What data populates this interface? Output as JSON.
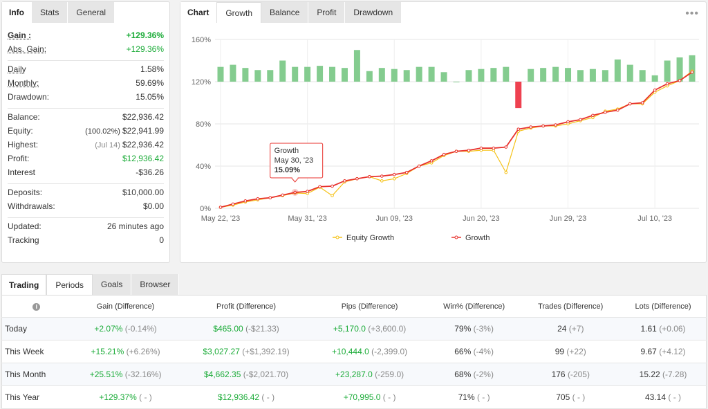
{
  "info_panel": {
    "tabs": [
      "Info",
      "Stats",
      "General"
    ],
    "gain": {
      "label": "Gain :",
      "value": "+129.36%"
    },
    "abs_gain": {
      "label": "Abs. Gain:",
      "value": "+129.36%"
    },
    "daily": {
      "label": "Daily",
      "value": "1.58%"
    },
    "monthly": {
      "label": "Monthly:",
      "value": "59.69%"
    },
    "drawdown": {
      "label": "Drawdown:",
      "value": "15.05%"
    },
    "balance": {
      "label": "Balance:",
      "value": "$22,936.42"
    },
    "equity": {
      "label": "Equity:",
      "note": "(100.02%)",
      "value": "$22,941.99"
    },
    "highest": {
      "label": "Highest:",
      "note": "(Jul 14)",
      "value": "$22,936.42"
    },
    "profit": {
      "label": "Profit:",
      "value": "$12,936.42"
    },
    "interest": {
      "label": "Interest",
      "value": "-$36.26"
    },
    "deposits": {
      "label": "Deposits:",
      "value": "$10,000.00"
    },
    "withdrawals": {
      "label": "Withdrawals:",
      "value": "$0.00"
    },
    "updated": {
      "label": "Updated:",
      "value": "26 minutes ago"
    },
    "tracking": {
      "label": "Tracking",
      "value": "0"
    }
  },
  "chart_panel": {
    "tabs": [
      "Chart",
      "Growth",
      "Balance",
      "Profit",
      "Drawdown"
    ],
    "more_icon": "more-dots-icon",
    "tooltip": {
      "title": "Growth",
      "date": "May 30, '23",
      "value": "15.09%"
    }
  },
  "chart_data": {
    "type": "line",
    "x": [
      "May 22, '23",
      "May 23, '23",
      "May 24, '23",
      "May 25, '23",
      "May 26, '23",
      "May 29, '23",
      "May 30, '23",
      "May 31, '23",
      "Jun 01, '23",
      "Jun 02, '23",
      "Jun 05, '23",
      "Jun 06, '23",
      "Jun 07, '23",
      "Jun 08, '23",
      "Jun 09, '23",
      "Jun 12, '23",
      "Jun 13, '23",
      "Jun 14, '23",
      "Jun 15, '23",
      "Jun 16, '23",
      "Jun 19, '23",
      "Jun 20, '23",
      "Jun 21, '23",
      "Jun 22, '23",
      "Jun 23, '23",
      "Jun 26, '23",
      "Jun 27, '23",
      "Jun 28, '23",
      "Jun 29, '23",
      "Jun 30, '23",
      "Jul 03, '23",
      "Jul 04, '23",
      "Jul 05, '23",
      "Jul 06, '23",
      "Jul 07, '23",
      "Jul 10, '23",
      "Jul 11, '23",
      "Jul 12, '23",
      "Jul 13, '23"
    ],
    "xticks": [
      "May 22, '23",
      "May 31, '23",
      "Jun 09, '23",
      "Jun 20, '23",
      "Jun 29, '23",
      "Jul 10, '23"
    ],
    "yticks": [
      "0%",
      "40%",
      "80%",
      "120%",
      "160%"
    ],
    "ylim": [
      0,
      160
    ],
    "series": [
      {
        "name": "Growth",
        "color": "#e8322d",
        "type": "line",
        "values": [
          1,
          4,
          7,
          9,
          10,
          12.5,
          15.1,
          16,
          20.5,
          21,
          26,
          28,
          30,
          30.5,
          32,
          34,
          40,
          45,
          51,
          54,
          55,
          57,
          57,
          58,
          75,
          77,
          78,
          79,
          82,
          84,
          88,
          91,
          93,
          99,
          100,
          112,
          118,
          121,
          129
        ]
      },
      {
        "name": "Equity Growth",
        "color": "#f5c218",
        "type": "line",
        "values": [
          1,
          3,
          6,
          8,
          10,
          12,
          14.5,
          14,
          20,
          12,
          25,
          28,
          30,
          26,
          28,
          33,
          40,
          43,
          50,
          54,
          54,
          55,
          55,
          34,
          73,
          76,
          78,
          78,
          80,
          83,
          86,
          92,
          94,
          99,
          99,
          110,
          116,
          121,
          130
        ]
      }
    ],
    "daily_bars": {
      "baseline": 120,
      "values": [
        134,
        136,
        133,
        131,
        131,
        140,
        134,
        134,
        135,
        134,
        133,
        150,
        130,
        133,
        132,
        131,
        134,
        134,
        129,
        120,
        131,
        132,
        133,
        134,
        95,
        132,
        133,
        134,
        133,
        131,
        132,
        131,
        141,
        136,
        131,
        126,
        140,
        143,
        145
      ],
      "positive_color": "#84cc8f",
      "negative_color": "#ee4150",
      "note": "bars show daily change around the 120% level"
    }
  },
  "legend": [
    "Equity Growth",
    "Growth"
  ],
  "periods": {
    "tabs": [
      "Trading",
      "Periods",
      "Goals",
      "Browser"
    ],
    "headers": [
      "Gain (Difference)",
      "Profit (Difference)",
      "Pips (Difference)",
      "Win% (Difference)",
      "Trades (Difference)",
      "Lots (Difference)"
    ],
    "rows": [
      {
        "label": "Today",
        "gain": "+2.07%",
        "gain_d": "(-0.14%)",
        "profit": "$465.00",
        "profit_d": "(-$21.33)",
        "pips": "+5,170.0",
        "pips_d": "(+3,600.0)",
        "win": "79%",
        "win_d": "(-3%)",
        "trades": "24",
        "trades_d": "(+7)",
        "lots": "1.61",
        "lots_d": "(+0.06)"
      },
      {
        "label": "This Week",
        "gain": "+15.21%",
        "gain_d": "(+6.26%)",
        "profit": "$3,027.27",
        "profit_d": "(+$1,392.19)",
        "pips": "+10,444.0",
        "pips_d": "(-2,399.0)",
        "win": "66%",
        "win_d": "(-4%)",
        "trades": "99",
        "trades_d": "(+22)",
        "lots": "9.67",
        "lots_d": "(+4.12)"
      },
      {
        "label": "This Month",
        "gain": "+25.51%",
        "gain_d": "(-32.16%)",
        "profit": "$4,662.35",
        "profit_d": "(-$2,021.70)",
        "pips": "+23,287.0",
        "pips_d": "(-259.0)",
        "win": "68%",
        "win_d": "(-2%)",
        "trades": "176",
        "trades_d": "(-205)",
        "lots": "15.22",
        "lots_d": "(-7.28)"
      },
      {
        "label": "This Year",
        "gain": "+129.37%",
        "gain_d": "( - )",
        "profit": "$12,936.42",
        "profit_d": "( - )",
        "pips": "+70,995.0",
        "pips_d": "( - )",
        "win": "71%",
        "win_d": "( - )",
        "trades": "705",
        "trades_d": "( - )",
        "lots": "43.14",
        "lots_d": "( - )"
      }
    ]
  }
}
